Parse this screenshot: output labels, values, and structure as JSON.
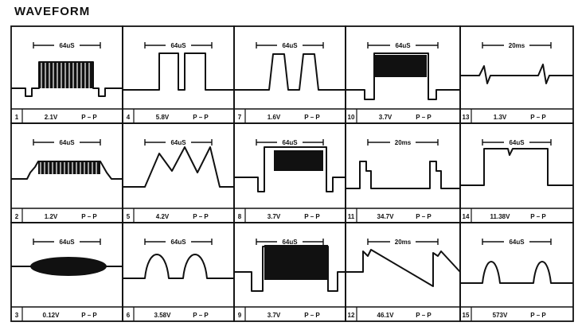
{
  "title": "WAVEFORM",
  "cells": [
    {
      "num": "1",
      "value": "2.1V",
      "unit": "P – P",
      "timebase": "64uS"
    },
    {
      "num": "2",
      "value": "1.2V",
      "unit": "P – P",
      "timebase": "64uS"
    },
    {
      "num": "3",
      "value": "0.12V",
      "unit": "P – P",
      "timebase": "64uS"
    },
    {
      "num": "4",
      "value": "5.8V",
      "unit": "P – P",
      "timebase": "64uS"
    },
    {
      "num": "5",
      "value": "4.2V",
      "unit": "P – P",
      "timebase": "64uS"
    },
    {
      "num": "6",
      "value": "3.58V",
      "unit": "P – P",
      "timebase": "64uS"
    },
    {
      "num": "7",
      "value": "1.6V",
      "unit": "P – P",
      "timebase": "64uS"
    },
    {
      "num": "8",
      "value": "3.7V",
      "unit": "P – P",
      "timebase": "64uS"
    },
    {
      "num": "9",
      "value": "3.7V",
      "unit": "P – P",
      "timebase": "64uS"
    },
    {
      "num": "10",
      "value": "3.7V",
      "unit": "P – P",
      "timebase": "64uS"
    },
    {
      "num": "11",
      "value": "34.7V",
      "unit": "P – P",
      "timebase": "20ms"
    },
    {
      "num": "12",
      "value": "46.1V",
      "unit": "P – P",
      "timebase": "20ms"
    },
    {
      "num": "13",
      "value": "1.3V",
      "unit": "P – P",
      "timebase": "20ms"
    },
    {
      "num": "14",
      "value": "11.38V",
      "unit": "P – P",
      "timebase": "64uS"
    },
    {
      "num": "15",
      "value": "573V",
      "unit": "P – P",
      "timebase": "64uS"
    }
  ]
}
